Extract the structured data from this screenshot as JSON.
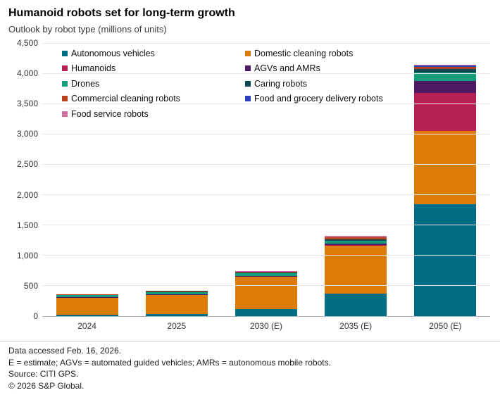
{
  "header": {
    "title": "Humanoid robots set for long-term growth",
    "subtitle": "Outlook by robot type (millions of units)"
  },
  "chart_data": {
    "type": "bar",
    "stacked": true,
    "title": "Humanoid robots set for long-term growth",
    "subtitle": "Outlook by robot type (millions of units)",
    "unit": "millions of units",
    "categories": [
      "2024",
      "2025",
      "2030 (E)",
      "2035 (E)",
      "2050 (E)"
    ],
    "series": [
      {
        "name": "Autonomous vehicles",
        "color": "#006d87",
        "values": [
          20,
          30,
          115,
          375,
          1845
        ]
      },
      {
        "name": "Domestic cleaning robots",
        "color": "#dc7c04",
        "values": [
          280,
          315,
          530,
          790,
          1200
        ]
      },
      {
        "name": "Humanoids",
        "color": "#b72055",
        "values": [
          2,
          3,
          5,
          10,
          630
        ]
      },
      {
        "name": "AGVs and AMRs",
        "color": "#4d1a63",
        "values": [
          8,
          10,
          15,
          25,
          200
        ]
      },
      {
        "name": "Drones",
        "color": "#149d7d",
        "values": [
          35,
          40,
          40,
          45,
          135
        ]
      },
      {
        "name": "Caring robots",
        "color": "#0c4a5a",
        "values": [
          5,
          6,
          12,
          25,
          60
        ]
      },
      {
        "name": "Commercial cleaning robots",
        "color": "#b8431c",
        "values": [
          10,
          12,
          15,
          25,
          35
        ]
      },
      {
        "name": "Food and grocery delivery robots",
        "color": "#2b3fbe",
        "values": [
          3,
          4,
          5,
          10,
          25
        ]
      },
      {
        "name": "Food service robots",
        "color": "#d0709b",
        "values": [
          2,
          3,
          10,
          15,
          15
        ]
      }
    ],
    "legend_order": [
      "Autonomous vehicles",
      "Domestic cleaning robots",
      "Humanoids",
      "AGVs and AMRs",
      "Drones",
      "Caring robots",
      "Commercial cleaning robots",
      "Food and grocery delivery robots",
      "Food service robots"
    ],
    "legend_position": "top-left-inside",
    "grid": "horizontal",
    "ylim": [
      0,
      4500
    ],
    "ytick_step": 500,
    "ytick_labels": [
      "0",
      "500",
      "1,000",
      "1,500",
      "2,000",
      "2,500",
      "3,000",
      "3,500",
      "4,000",
      "4,500"
    ]
  },
  "footnotes": [
    "Data accessed Feb. 16, 2026.",
    "E = estimate; AGVs = automated guided vehicles; AMRs = autonomous mobile robots.",
    "Source: CITI GPS.",
    "© 2026 S&P Global."
  ]
}
